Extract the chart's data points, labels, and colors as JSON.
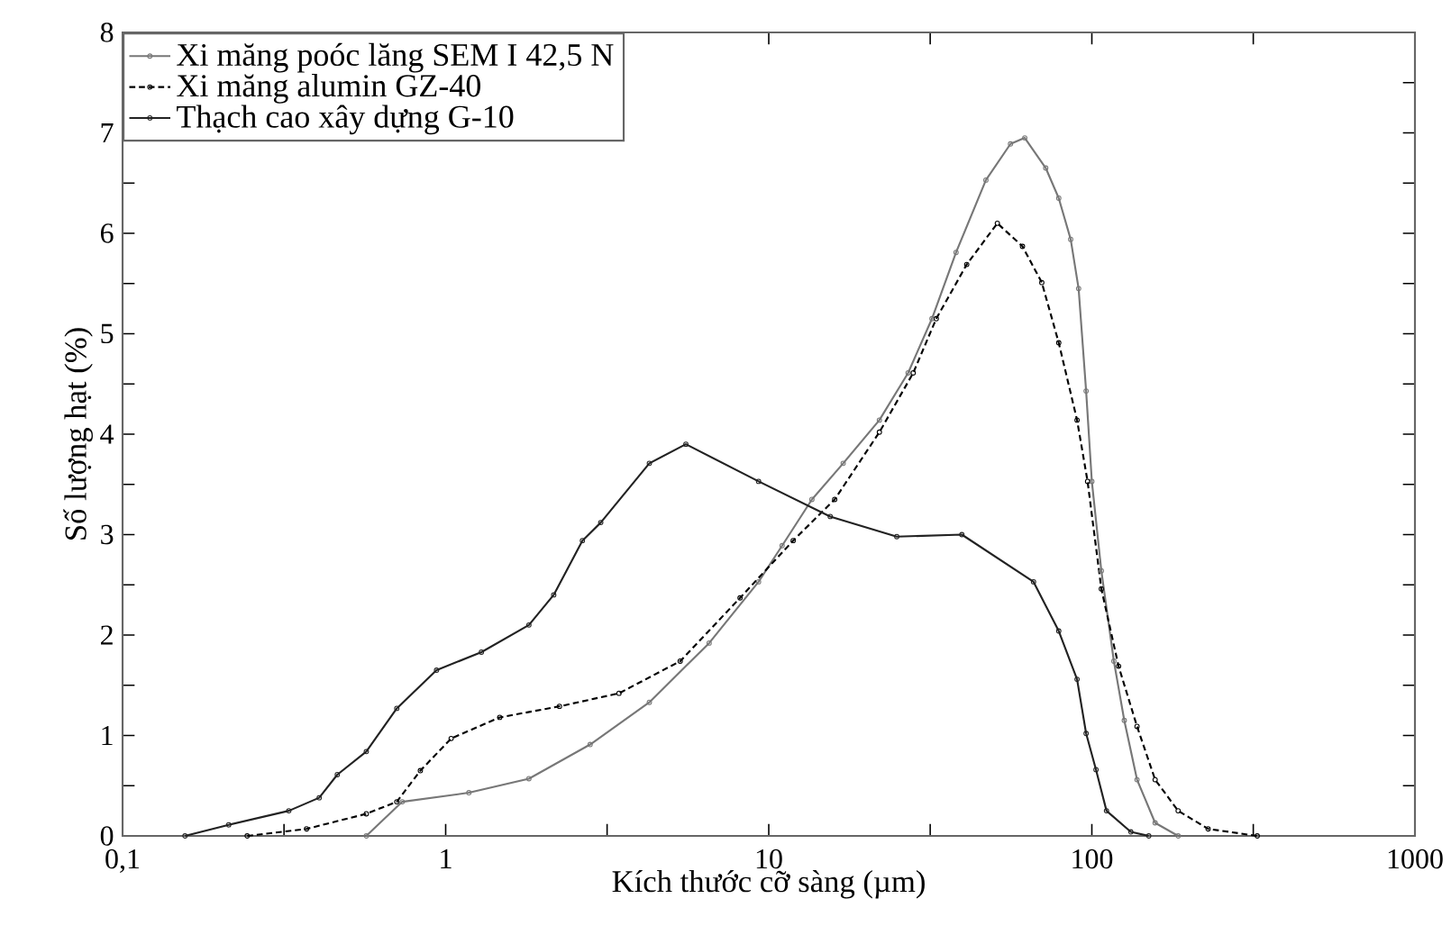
{
  "chart_data": {
    "type": "line",
    "xlabel": "Kích thước cỡ sàng (µm)",
    "ylabel": "Số lượng hạt (%)",
    "log": "x",
    "xlim": [
      0.1,
      1000
    ],
    "ylim": [
      0,
      8
    ],
    "xticks": [
      {
        "value": 0.1,
        "label": "0,1"
      },
      {
        "value": 0.316,
        "label": null
      },
      1,
      {
        "value": 3.16,
        "label": null
      },
      10,
      {
        "value": 31.6,
        "label": null
      },
      100,
      {
        "value": 316,
        "label": null
      },
      1000
    ],
    "yticks": [
      0,
      {
        "value": 0.5,
        "label": null
      },
      1,
      {
        "value": 1.5,
        "label": null
      },
      2,
      {
        "value": 2.5,
        "label": null
      },
      3,
      {
        "value": 3.5,
        "label": null
      },
      4,
      {
        "value": 4.5,
        "label": null
      },
      5,
      {
        "value": 5.5,
        "label": null
      },
      6,
      {
        "value": 6.5,
        "label": null
      },
      7,
      {
        "value": 7.5,
        "label": null
      },
      8
    ],
    "grid": false,
    "legend": "top left",
    "marker": "circle",
    "series": [
      {
        "name": "Xi măng poóc lăng SEM I 42,5 N",
        "color": "#777777",
        "line_style": "solid",
        "x": [
          0.568,
          0.734,
          1.18,
          1.81,
          2.8,
          4.27,
          6.54,
          9.3,
          11,
          13.6,
          17,
          22,
          27,
          32,
          38,
          47,
          56,
          62,
          72,
          79,
          86,
          91,
          96,
          100,
          107,
          117,
          126,
          138,
          157,
          185
        ],
        "values": [
          0,
          0.34,
          0.43,
          0.57,
          0.91,
          1.33,
          1.92,
          2.53,
          2.89,
          3.35,
          3.71,
          4.14,
          4.61,
          5.15,
          5.81,
          6.53,
          6.89,
          6.95,
          6.65,
          6.35,
          5.94,
          5.45,
          4.43,
          3.53,
          2.64,
          1.74,
          1.15,
          0.56,
          0.13,
          0
        ]
      },
      {
        "name": "Xi măng alumin GZ-40",
        "color": "#000000",
        "line_style": "dashed",
        "x": [
          0.243,
          0.371,
          0.568,
          0.706,
          0.835,
          1.04,
          1.47,
          2.25,
          3.44,
          5.32,
          8.15,
          11.9,
          16,
          22,
          28,
          33,
          41,
          51,
          61,
          70,
          79,
          90,
          97,
          107,
          121,
          138,
          157,
          185,
          229,
          325
        ],
        "values": [
          0,
          0.07,
          0.22,
          0.34,
          0.65,
          0.97,
          1.18,
          1.29,
          1.42,
          1.74,
          2.37,
          2.94,
          3.35,
          4.02,
          4.61,
          5.15,
          5.69,
          6.1,
          5.87,
          5.51,
          4.91,
          4.14,
          3.53,
          2.46,
          1.69,
          1.09,
          0.56,
          0.25,
          0.07,
          0
        ]
      },
      {
        "name": "Thạch cao xây dựng G-10",
        "color": "#222222",
        "line_style": "solid",
        "x": [
          0.156,
          0.213,
          0.327,
          0.406,
          0.462,
          0.568,
          0.706,
          0.937,
          1.29,
          1.81,
          2.16,
          2.65,
          3.02,
          4.27,
          5.54,
          9.3,
          15.5,
          24.9,
          39.6,
          66,
          79,
          90,
          96,
          103,
          111,
          132,
          150
        ],
        "values": [
          0,
          0.11,
          0.25,
          0.38,
          0.61,
          0.84,
          1.27,
          1.65,
          1.83,
          2.1,
          2.4,
          2.94,
          3.12,
          3.71,
          3.9,
          3.53,
          3.18,
          2.98,
          3.0,
          2.53,
          2.04,
          1.56,
          1.02,
          0.66,
          0.25,
          0.04,
          0
        ]
      }
    ]
  }
}
